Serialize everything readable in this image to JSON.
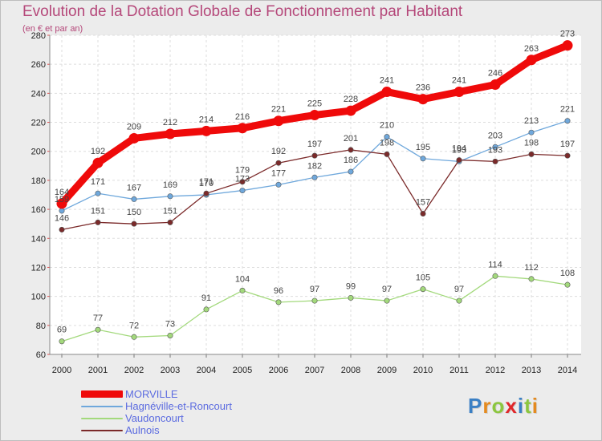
{
  "header": {
    "title": "Evolution de la Dotation Globale de Fonctionnement par Habitant",
    "subtitle": "(en € et par an)"
  },
  "brand": {
    "logo_letters": [
      "P",
      "r",
      "o",
      "x",
      "i",
      "t",
      "i"
    ],
    "logo_colors": [
      "#3a7fc4",
      "#e48a1f",
      "#8cc63f",
      "#e0282b",
      "#3a7fc4",
      "#8cc63f",
      "#e48a1f"
    ]
  },
  "chart_data": {
    "type": "line",
    "title": "Evolution de la Dotation Globale de Fonctionnement par Habitant",
    "subtitle": "(en € et par an)",
    "xlabel": "",
    "ylabel": "",
    "ylim": [
      60,
      280
    ],
    "yticks": [
      60,
      80,
      100,
      120,
      140,
      160,
      180,
      200,
      220,
      240,
      260,
      280
    ],
    "grid": true,
    "legend_position": "bottom-left",
    "x": [
      "2000",
      "2001",
      "2002",
      "2003",
      "2004",
      "2005",
      "2006",
      "2007",
      "2008",
      "2009",
      "2010",
      "2011",
      "2012",
      "2013",
      "2014"
    ],
    "series": [
      {
        "name": "MORVILLE",
        "color": "#ef0a0a",
        "values": [
          164,
          192,
          209,
          212,
          214,
          216,
          221,
          225,
          228,
          241,
          236,
          241,
          246,
          263,
          273
        ]
      },
      {
        "name": "Hagnéville-et-Roncourt",
        "color": "#6fa8dc",
        "values": [
          159,
          171,
          167,
          169,
          170,
          173,
          177,
          182,
          186,
          210,
          195,
          193,
          203,
          213,
          221
        ]
      },
      {
        "name": "Vaudoncourt",
        "color": "#a3d97c",
        "values": [
          69,
          77,
          72,
          73,
          91,
          104,
          96,
          97,
          99,
          97,
          105,
          97,
          114,
          112,
          108
        ]
      },
      {
        "name": "Aulnois",
        "color": "#7b2a2a",
        "values": [
          146,
          151,
          150,
          151,
          171,
          179,
          192,
          197,
          201,
          198,
          157,
          194,
          193,
          198,
          197
        ]
      }
    ]
  }
}
